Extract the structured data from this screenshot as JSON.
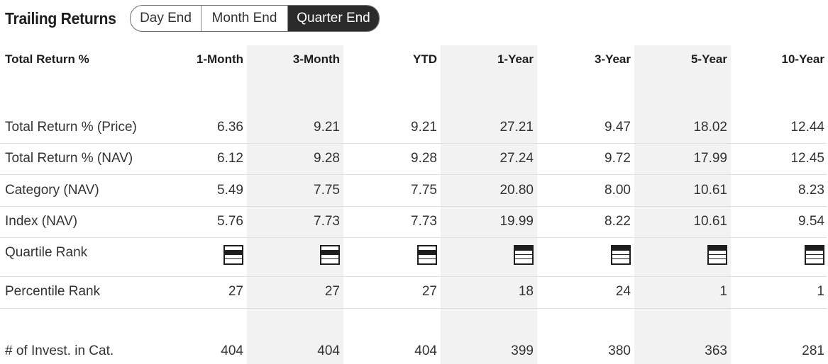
{
  "header": {
    "title": "Trailing Returns",
    "tabs": [
      {
        "label": "Day End",
        "active": false
      },
      {
        "label": "Month End",
        "active": false
      },
      {
        "label": "Quarter End",
        "active": true
      }
    ]
  },
  "table": {
    "corner_label": "Total Return %",
    "columns": [
      "1-Month",
      "3-Month",
      "YTD",
      "1-Year",
      "3-Year",
      "5-Year",
      "10-Year"
    ],
    "rows": [
      {
        "label": "Total Return % (Price)",
        "values": [
          "6.36",
          "9.21",
          "9.21",
          "27.21",
          "9.47",
          "18.02",
          "12.44"
        ]
      },
      {
        "label": "Total Return % (NAV)",
        "values": [
          "6.12",
          "9.28",
          "9.28",
          "27.24",
          "9.72",
          "17.99",
          "12.45"
        ]
      },
      {
        "label": "Category (NAV)",
        "values": [
          "5.49",
          "7.75",
          "7.75",
          "20.80",
          "8.00",
          "10.61",
          "8.23"
        ]
      },
      {
        "label": "Index (NAV)",
        "values": [
          "5.76",
          "7.73",
          "7.73",
          "19.99",
          "8.22",
          "10.61",
          "9.54"
        ]
      }
    ],
    "quartile_row": {
      "label": "Quartile Rank",
      "quartiles": [
        2,
        2,
        2,
        1,
        1,
        1,
        1
      ]
    },
    "percentile_row": {
      "label": "Percentile Rank",
      "values": [
        "27",
        "27",
        "27",
        "18",
        "24",
        "1",
        "1"
      ]
    },
    "count_row": {
      "label": "# of Invest. in Cat.",
      "values": [
        "404",
        "404",
        "404",
        "399",
        "380",
        "363",
        "281"
      ]
    }
  },
  "colors": {
    "active_tab_bg": "#2b2b2b",
    "column_shade": "#f2f2f2",
    "divider": "#e0e0e0"
  }
}
